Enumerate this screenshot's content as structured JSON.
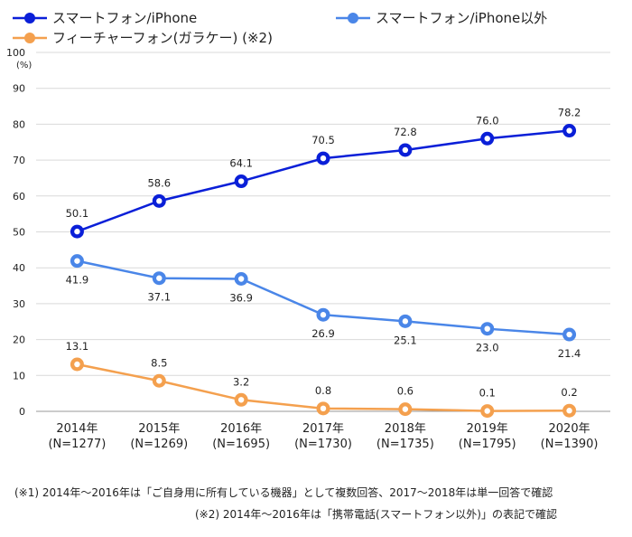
{
  "chart_data": {
    "type": "line",
    "y_unit": "(%)",
    "ylim": [
      0,
      100
    ],
    "yticks": [
      0,
      10,
      20,
      30,
      40,
      50,
      60,
      70,
      80,
      90,
      100
    ],
    "grid": true,
    "legend_position": "top-left",
    "categories": [
      {
        "year": "2014年",
        "n": "(N=1277)"
      },
      {
        "year": "2015年",
        "n": "(N=1269)"
      },
      {
        "year": "2016年",
        "n": "(N=1695)"
      },
      {
        "year": "2017年",
        "n": "(N=1730)"
      },
      {
        "year": "2018年",
        "n": "(N=1735)"
      },
      {
        "year": "2019年",
        "n": "(N=1795)"
      },
      {
        "year": "2020年",
        "n": "(N=1390)"
      }
    ],
    "series": [
      {
        "name": "スマートフォン/iPhone",
        "color": "#0a1fd8",
        "fill": "#ffffff",
        "label_position": "above",
        "values": [
          50.1,
          58.6,
          64.1,
          70.5,
          72.8,
          76.0,
          78.2
        ],
        "labels": [
          "50.1",
          "58.6",
          "64.1",
          "70.5",
          "72.8",
          "76.0",
          "78.2"
        ]
      },
      {
        "name": "スマートフォン/iPhone以外",
        "color": "#4a86e8",
        "fill": "#ffffff",
        "label_position": "below",
        "values": [
          41.9,
          37.1,
          36.9,
          26.9,
          25.1,
          23.0,
          21.4
        ],
        "labels": [
          "41.9",
          "37.1",
          "36.9",
          "26.9",
          "25.1",
          "23.0",
          "21.4"
        ]
      },
      {
        "name": "フィーチャーフォン(ガラケー) (※2)",
        "color": "#f4a04e",
        "fill": "#ffffff",
        "label_position": "above",
        "values": [
          13.1,
          8.5,
          3.2,
          0.8,
          0.6,
          0.1,
          0.2
        ],
        "labels": [
          "13.1",
          "8.5",
          "3.2",
          "0.8",
          "0.6",
          "0.1",
          "0.2"
        ]
      }
    ]
  },
  "notes": {
    "note1": "(※1) 2014年～2016年は「ご自身用に所有している機器」として複数回答、2017～2018年は単一回答で確認",
    "note2": "(※2) 2014年～2016年は「携帯電話(スマートフォン以外)」の表記で確認"
  }
}
